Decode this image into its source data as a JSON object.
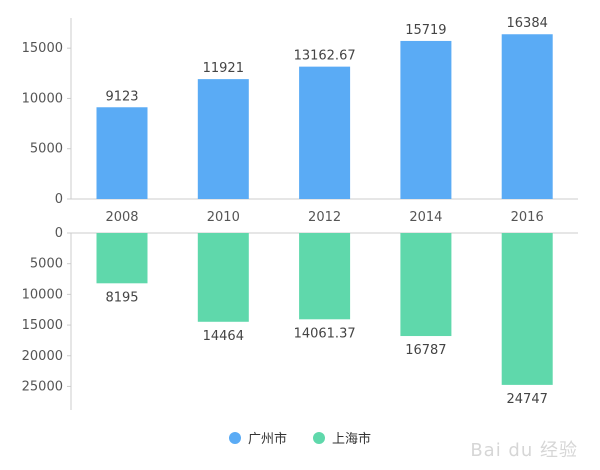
{
  "chart_data": {
    "type": "bar",
    "layout": "mirrored-vertical",
    "categories": [
      "2008",
      "2010",
      "2012",
      "2014",
      "2016"
    ],
    "series": [
      {
        "name": "广州市",
        "values": [
          9123,
          11921,
          13162.67,
          15719,
          16384
        ],
        "color": "#5aabf5",
        "labels": [
          "9123",
          "11921",
          "13162.67",
          "15719",
          "16384"
        ]
      },
      {
        "name": "上海市",
        "values": [
          8195,
          14464,
          14061.37,
          16787,
          24747
        ],
        "color": "#5fd8ab",
        "labels": [
          "8195",
          "14464",
          "14061.37",
          "16787",
          "24747"
        ]
      }
    ],
    "top_axis": {
      "ylim": [
        0,
        18000
      ],
      "ticks": [
        0,
        5000,
        10000,
        15000
      ]
    },
    "bottom_axis": {
      "ylim": [
        0,
        29000
      ],
      "ticks": [
        0,
        5000,
        10000,
        15000,
        20000,
        25000
      ],
      "inverted": true
    },
    "legend_position": "bottom-center",
    "grid": false
  },
  "legend": {
    "items": [
      {
        "label": "广州市",
        "color": "#5aabf5"
      },
      {
        "label": "上海市",
        "color": "#5fd8ab"
      }
    ]
  },
  "watermark": {
    "text": "Bai du 经验"
  }
}
